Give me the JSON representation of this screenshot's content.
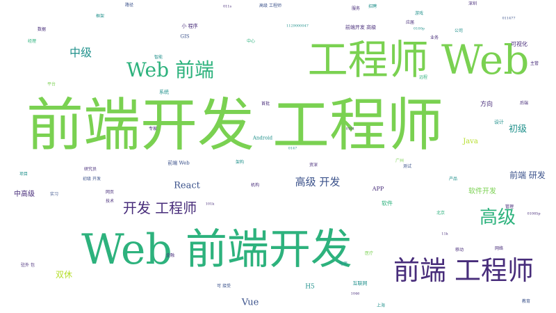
{
  "palette": {
    "yellow_green": "#7ad151",
    "green": "#2db27d",
    "teal": "#21918c",
    "blue": "#3b528b",
    "purple": "#472c7a",
    "lime": "#b5de2b"
  },
  "words": {
    "qianduan_kaifa_gongchengshi": "前端开发 工程师",
    "gongchengshi_web": "工程师 Web",
    "web_qianduan_kaifa": "Web 前端开发",
    "qianduan_gongchengshi": "前端 工程师",
    "web_qianduan": "Web 前端",
    "kaifa_gongchengshi": "开发 工程师",
    "gaoji": "高级",
    "zhongji": "中级",
    "gaoji_kaifa": "高级 开发",
    "qianduan_yanfa": "前端 研发",
    "react": "React",
    "vue": "Vue",
    "chuji": "初级",
    "java": "Java",
    "shuangxiu": "双休",
    "zhonggaoji": "中高级",
    "ruanjian_kaifa": "软件开发",
    "keshihua": "可视化",
    "fangxiang": "方向",
    "xiaochengxu": "小 程序",
    "h5": "H5",
    "app": "APP",
    "ruanjian": "软件",
    "android": "Android",
    "gis": "GIS",
    "hulianwang": "互联网",
    "sheji": "设计",
    "xitong": "系统",
    "zhongxin": "中心",
    "shanghai": "上海",
    "beijing": "北京",
    "wangye": "网页",
    "zhiliang": "资深",
    "pingtai": "平台",
    "gaoji_gongchengshi": "高级 工程师",
    "qianduan_kaifa_gaoji": "前端开发 高级",
    "qianduan_web": "前端 Web",
    "yuancheng": "远程",
    "jiagou": "架构",
    "keyijiashi": "可 接受",
    "lujing": "路径",
    "yanjiuyuan": "研究员",
    "shiwai_bao": "驻外 包",
    "jiwei": "机构",
    "shipin": "视频",
    "huakai": "华开",
    "jinrong": "金融",
    "zhineng": "智能",
    "dianshang": "电商",
    "jishu": "技术",
    "zhongji_kaifa": "中 开发",
    "yidong": "移动",
    "chanpin": "产品",
    "zhongjian": "中坚",
    "guanli": "管理",
    "jiaoyu": "教育",
    "guangzhou": "广州",
    "shenzhen": "深圳",
    "wangluo": "网络",
    "yiliao": "医疗",
    "youxi": "游戏",
    "fuwu": "服务",
    "ceshi": "测试",
    "yunwei": "运维",
    "shuju": "数据",
    "daima": "代码",
    "kuangjia": "框架",
    "xiangmu": "项目",
    "yewu": "业务",
    "houduan": "后端",
    "zhaopin": "招聘",
    "shixi": "实习",
    "yingjie": "应届",
    "gongsi": "公司",
    "jingli": "经理",
    "zhuguan": "主管",
    "zhuanjia": "专家",
    "qianduan": "前端",
    "kaifa": "开发",
    "gongcheng": "工程",
    "shoupin": "首批",
    "yiban": "一般",
    "chuji_kaifa": "初级 开发",
    "num1": "1129000047",
    "num2": "011477",
    "num3": "01085p",
    "num4": "0100p",
    "num5": "11k",
    "num6": "0101",
    "num7": "011s",
    "num8": "0147",
    "num9": "101k",
    "num10": "1046"
  }
}
